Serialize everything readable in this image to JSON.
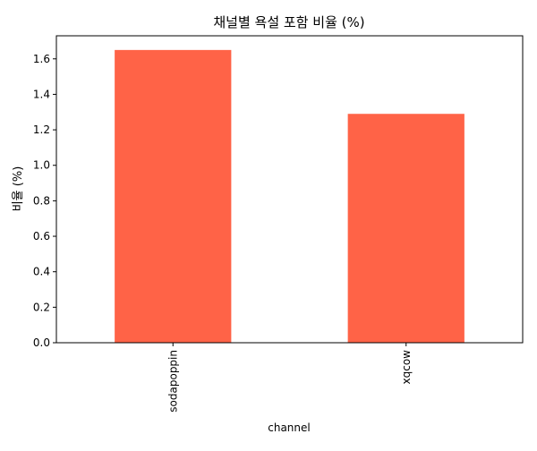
{
  "chart_data": {
    "type": "bar",
    "title": "채널별 욕설 포함 비율 (%)",
    "xlabel": "channel",
    "ylabel": "비율 (%)",
    "categories": [
      "sodapoppin",
      "xqcow"
    ],
    "values": [
      1.65,
      1.29
    ],
    "ylim": [
      0,
      1.73
    ],
    "yticks": [
      0.0,
      0.2,
      0.4,
      0.6,
      0.8,
      1.0,
      1.2,
      1.4,
      1.6
    ],
    "ytick_labels": [
      "0.0",
      "0.2",
      "0.4",
      "0.6",
      "0.8",
      "1.0",
      "1.2",
      "1.4",
      "1.6"
    ],
    "grid": false,
    "bar_color": "#ff6347"
  }
}
